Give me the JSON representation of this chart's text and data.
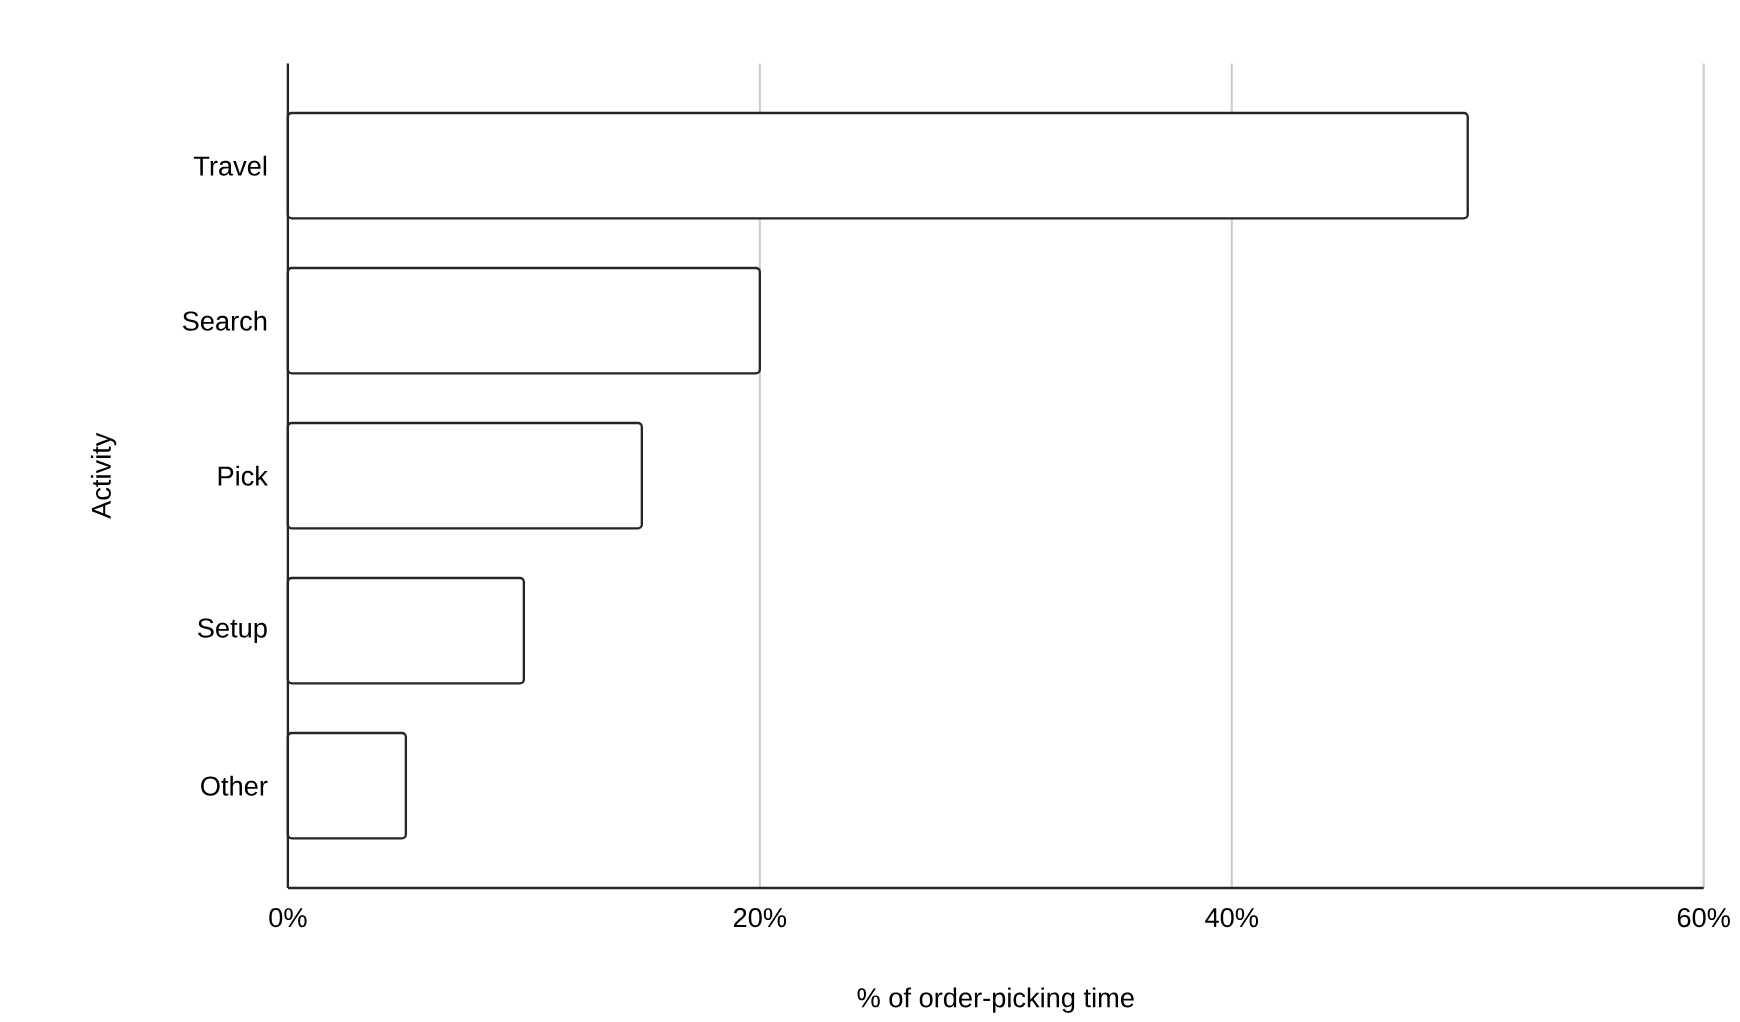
{
  "chart_data": {
    "type": "bar",
    "orientation": "horizontal",
    "categories": [
      "Travel",
      "Search",
      "Pick",
      "Setup",
      "Other"
    ],
    "values": [
      50,
      20,
      15,
      10,
      5
    ],
    "color": "#ffffff",
    "xlabel": "% of order-picking time",
    "ylabel": "Activity",
    "xlim": [
      0,
      60
    ],
    "xticks": [
      {
        "value": 0,
        "label": "0%"
      },
      {
        "value": 20,
        "label": "20%"
      },
      {
        "value": 40,
        "label": "40%"
      },
      {
        "value": 60,
        "label": "60%"
      }
    ],
    "grid": "x"
  }
}
